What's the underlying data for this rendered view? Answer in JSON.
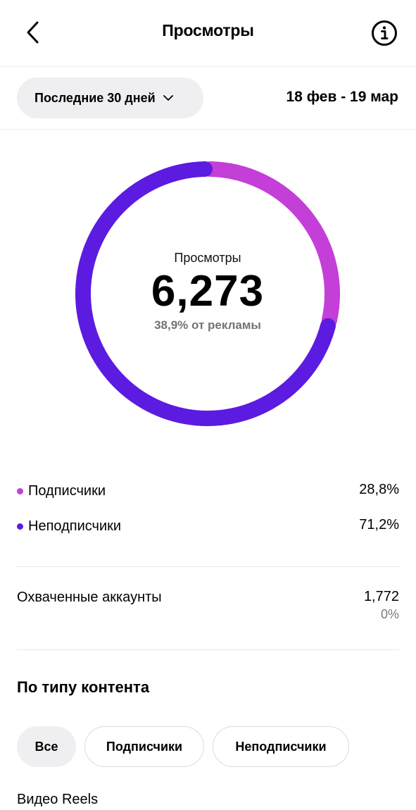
{
  "header": {
    "title": "Просмотры",
    "back_icon": "chevron-left-icon",
    "info_icon": "info-circle-icon"
  },
  "filter": {
    "period_label": "Последние 30 дней",
    "date_range": "18 фев - 19 мар"
  },
  "chart_data": {
    "type": "pie",
    "title": "Просмотры",
    "total": "6,273",
    "subtitle": "38,9% от рекламы",
    "slices": [
      {
        "name": "Подписчики",
        "value": 28.8,
        "color": "#c43ed8"
      },
      {
        "name": "Неподписчики",
        "value": 71.2,
        "color": "#5c1be0"
      }
    ]
  },
  "legend": [
    {
      "label": "Подписчики",
      "value": "28,8%",
      "color": "#c43ed8"
    },
    {
      "label": "Неподписчики",
      "value": "71,2%",
      "color": "#5c1be0"
    }
  ],
  "reach": {
    "label": "Охваченные аккаунты",
    "value": "1,772",
    "change": "0%"
  },
  "content_type": {
    "title": "По типу контента",
    "chips": [
      {
        "label": "Все",
        "active": true
      },
      {
        "label": "Подписчики",
        "active": false
      },
      {
        "label": "Неподписчики",
        "active": false
      }
    ],
    "first_item": "Видео Reels"
  }
}
